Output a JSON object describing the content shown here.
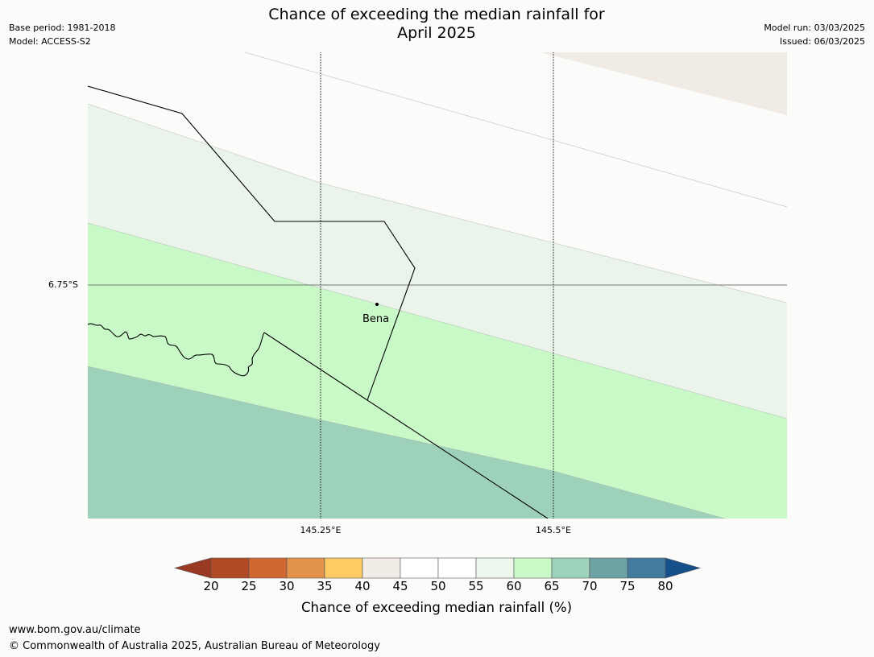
{
  "title_line1": "Chance of exceeding the median rainfall for",
  "title_line2": "April 2025",
  "meta": {
    "base_period": "Base period: 1981-2018",
    "model": "Model: ACCESS-S2",
    "model_run": "Model run: 03/03/2025",
    "issued": "Issued: 06/03/2025"
  },
  "map": {
    "lat_label": "6.75°S",
    "lon_labels": [
      "145.25°E",
      "145.5°E"
    ],
    "place": "Bena",
    "zones": [
      {
        "band": "40-45",
        "color": "#f0ebe5"
      },
      {
        "band": "45-55",
        "color": "#fbfcfa"
      },
      {
        "band": "55-60",
        "color": "#eaf4ea"
      },
      {
        "band": "60-65",
        "color": "#caf9c8"
      },
      {
        "band": "65-70",
        "color": "#9dd1b9"
      }
    ]
  },
  "colorbar": {
    "title": "Chance of exceeding median rainfall (%)",
    "ticks": [
      "20",
      "25",
      "30",
      "35",
      "40",
      "45",
      "50",
      "55",
      "60",
      "65",
      "70",
      "75",
      "80"
    ],
    "under_color": "#9a3a23",
    "over_color": "#16508a",
    "segments": [
      "#b34a26",
      "#d16832",
      "#e3934a",
      "#fdca63",
      "#f2ece6",
      "#ffffff",
      "#ffffff",
      "#ecf6ec",
      "#caf9c8",
      "#9dd1b9",
      "#6ea3a6",
      "#427b9e"
    ]
  },
  "footer": {
    "url": "www.bom.gov.au/climate",
    "copyright": "© Commonwealth of Australia 2025, Australian Bureau of Meteorology"
  }
}
